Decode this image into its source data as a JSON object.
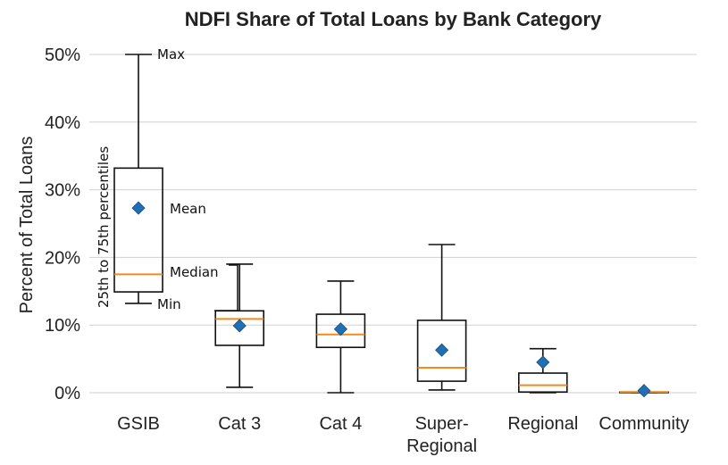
{
  "chart_data": {
    "type": "box",
    "title": "NDFI Share of Total Loans by Bank Category",
    "xlabel": "",
    "ylabel": "Percent of Total Loans",
    "ylim": [
      0,
      50
    ],
    "yticks": [
      0,
      10,
      20,
      30,
      40,
      50
    ],
    "ytick_labels": [
      "0%",
      "10%",
      "20%",
      "30%",
      "40%",
      "50%"
    ],
    "grid": true,
    "categories": [
      {
        "label": [
          "GSIB"
        ],
        "min": 13.2,
        "q1": 14.9,
        "median": 17.5,
        "mean": 27.3,
        "q3": 33.2,
        "max": 50.0
      },
      {
        "label": [
          "Cat 3"
        ],
        "min": 0.8,
        "q1": 7.0,
        "median": 10.9,
        "mean": 9.9,
        "q3": 12.1,
        "max": 19.0
      },
      {
        "label": [
          "Cat 4"
        ],
        "min": 0.0,
        "q1": 6.7,
        "median": 8.6,
        "mean": 9.4,
        "q3": 11.6,
        "max": 16.5
      },
      {
        "label": [
          "Super-",
          "Regional"
        ],
        "min": 0.4,
        "q1": 1.7,
        "median": 3.7,
        "mean": 6.3,
        "q3": 10.7,
        "max": 21.9
      },
      {
        "label": [
          "Regional"
        ],
        "min": 0.0,
        "q1": 0.1,
        "median": 1.1,
        "mean": 4.5,
        "q3": 2.9,
        "max": 6.5
      },
      {
        "label": [
          "Community"
        ],
        "min": 0.0,
        "q1": 0.0,
        "median": 0.1,
        "mean": 0.3,
        "q3": 0.1,
        "max": 0.1
      }
    ],
    "annotations": {
      "max": "Max",
      "mean": "Mean",
      "median": "Median",
      "min": "Min",
      "box": "25th to 75th percentiles"
    },
    "colors": {
      "median": "#f28a1c",
      "mean": "#1f6fb2",
      "grid": "#d0d0d0",
      "box": "#111111"
    }
  }
}
